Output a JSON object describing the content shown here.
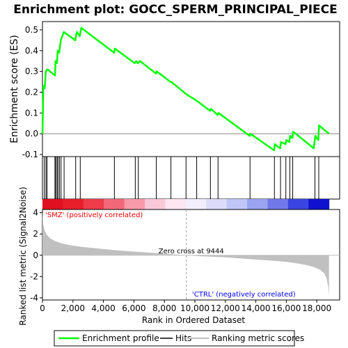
{
  "chart_data": {
    "title": "Enrichment plot: GOCC_SPERM_PRINCIPAL_PIECE",
    "top_panel": {
      "type": "line",
      "ylabel": "Enrichment score (ES)",
      "ylim": [
        -0.11,
        0.54
      ],
      "yticks": [
        -0.1,
        0.0,
        0.1,
        0.2,
        0.3,
        0.4,
        0.5
      ],
      "ytick_labels": [
        "-0.1",
        "0.0",
        "0.1",
        "0.2",
        "0.3",
        "0.4",
        "0.5"
      ],
      "series": [
        {
          "name": "Enrichment profile",
          "color": "#00ff00",
          "x": [
            0,
            30,
            60,
            150,
            220,
            330,
            820,
            860,
            950,
            1000,
            1100,
            1200,
            1400,
            2150,
            2250,
            2450,
            2550,
            4700,
            4750,
            6050,
            6150,
            6250,
            6400,
            7450,
            7500,
            8400,
            8450,
            9450,
            10100,
            11000,
            11050,
            11500,
            11550,
            13600,
            13650,
            15200,
            15250,
            15600,
            15650,
            15950,
            16000,
            16200,
            16250,
            16400,
            16450,
            17800,
            17900,
            18100,
            18150,
            18800
          ],
          "y": [
            0.0,
            0.12,
            0.23,
            0.22,
            0.3,
            0.31,
            0.28,
            0.35,
            0.34,
            0.4,
            0.39,
            0.45,
            0.49,
            0.45,
            0.49,
            0.47,
            0.51,
            0.39,
            0.41,
            0.34,
            0.35,
            0.34,
            0.35,
            0.29,
            0.3,
            0.25,
            0.25,
            0.19,
            0.16,
            0.11,
            0.12,
            0.09,
            0.1,
            -0.01,
            0.0,
            -0.08,
            -0.05,
            -0.07,
            -0.04,
            -0.05,
            -0.03,
            -0.04,
            -0.01,
            -0.02,
            0.01,
            -0.07,
            -0.01,
            -0.03,
            0.04,
            0.0
          ]
        }
      ]
    },
    "hits": [
      120,
      230,
      300,
      820,
      870,
      960,
      1020,
      1120,
      1220,
      1420,
      2180,
      2480,
      4720,
      6090,
      6290,
      7470,
      8430,
      9420,
      10120,
      11020,
      11520,
      13620,
      15220,
      15620,
      15970,
      16230,
      16420,
      17880,
      18130
    ],
    "bottom_panel": {
      "type": "area",
      "ylabel": "Ranked list metric (Signal2Noise)",
      "xlabel": "Rank in Ordered Dataset",
      "ylim": [
        -4.2,
        4.3
      ],
      "yticks": [
        -4,
        -2,
        0,
        2,
        4
      ],
      "ytick_labels": [
        "-4",
        "-2",
        "0",
        "2",
        "4"
      ],
      "xlim": [
        0,
        19500
      ],
      "xticks": [
        0,
        2000,
        4000,
        6000,
        8000,
        10000,
        12000,
        14000,
        16000,
        18000
      ],
      "xtick_labels": [
        "0",
        "2,000",
        "4,000",
        "6,000",
        "8,000",
        "10,000",
        "12,000",
        "14,000",
        "16,000",
        "18,000"
      ],
      "fill_color": "#c0c0c0",
      "metric_x": [
        0,
        50,
        150,
        300,
        500,
        800,
        1200,
        1800,
        2500,
        3500,
        5000,
        6500,
        8000,
        9444,
        10500,
        12000,
        13500,
        15000,
        16000,
        16800,
        17300,
        17800,
        18200,
        18500,
        18650,
        18750,
        18800
      ],
      "metric_y": [
        4.1,
        2.9,
        2.3,
        1.9,
        1.6,
        1.35,
        1.15,
        0.95,
        0.8,
        0.65,
        0.45,
        0.3,
        0.15,
        0.0,
        -0.1,
        -0.2,
        -0.35,
        -0.5,
        -0.62,
        -0.78,
        -0.92,
        -1.1,
        -1.35,
        -1.7,
        -2.2,
        -3.0,
        -3.8
      ],
      "zero_cross_rank": 9444,
      "zero_cross_label": "Zero cross at 9444",
      "pos_label": "'SMZ' (positively correlated)",
      "neg_label": "'CTRL' (negatively correlated)",
      "pos_color": "#ff0000",
      "neg_color": "#0000ff"
    },
    "legend": [
      {
        "label": "Enrichment profile",
        "color": "#00ff00"
      },
      {
        "label": "Hits",
        "color": "#000000"
      },
      {
        "label": "Ranking metric scores",
        "color": "#c0c0c0"
      }
    ],
    "n_ranks": 18800,
    "xmax": 19500
  }
}
